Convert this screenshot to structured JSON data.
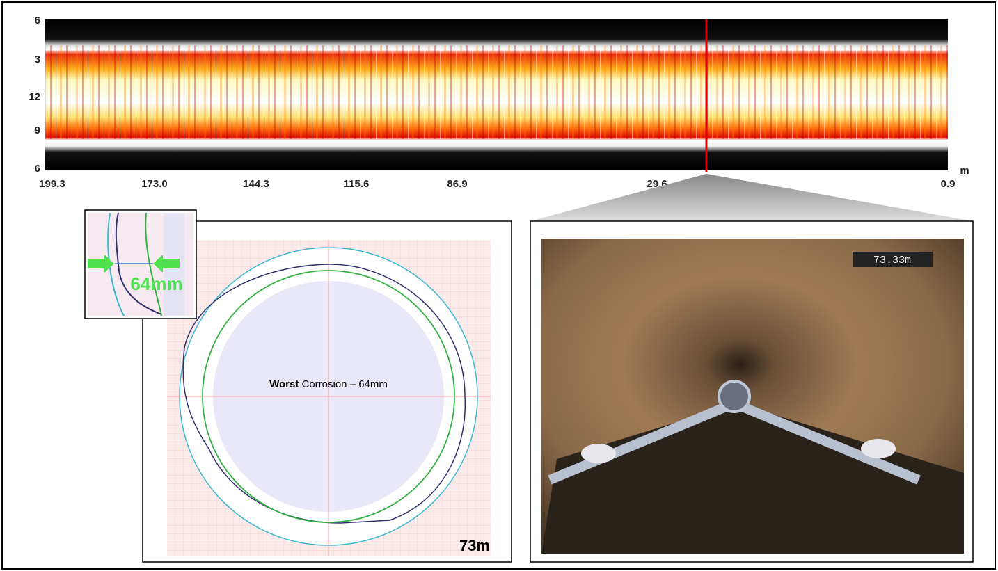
{
  "strip": {
    "y_labels": [
      "6",
      "3",
      "12",
      "9",
      "6"
    ],
    "x_labels": [
      "199.3",
      "173.0",
      "144.3",
      "115.6",
      "86.9",
      "29.6",
      "0.9"
    ],
    "x_unit": "m"
  },
  "profile": {
    "title_bold": "Worst",
    "title_rest": "Corrosion – 64mm",
    "distance": "73m",
    "inset_label": "64mm"
  },
  "camera": {
    "overlay": "73.33m"
  }
}
